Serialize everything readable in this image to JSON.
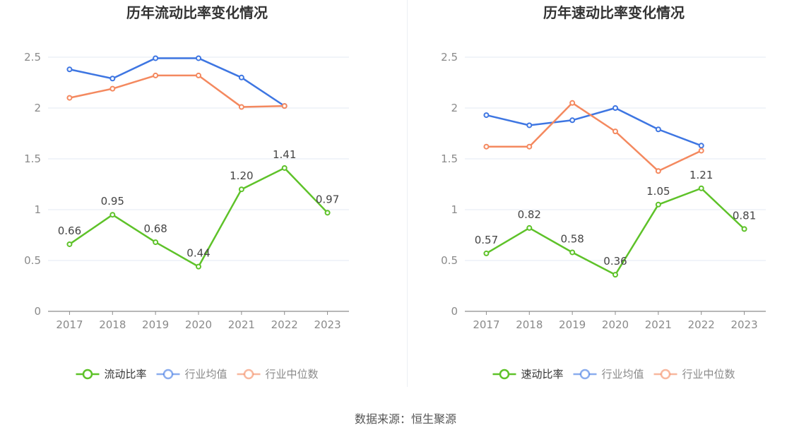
{
  "chart_data": [
    {
      "type": "line",
      "title": "历年流动比率变化情况",
      "categories": [
        "2017",
        "2018",
        "2019",
        "2020",
        "2021",
        "2022",
        "2023"
      ],
      "ylim": [
        0,
        2.5
      ],
      "yticks": [
        "0",
        "0.5",
        "1",
        "1.5",
        "2",
        "2.5"
      ],
      "grid": true,
      "legend_position": "bottom",
      "series": [
        {
          "name": "流动比率",
          "color": "#5ec229",
          "values": [
            0.66,
            0.95,
            0.68,
            0.44,
            1.2,
            1.41,
            0.97
          ],
          "labels": [
            "0.66",
            "0.95",
            "0.68",
            "0.44",
            "1.20",
            "1.41",
            "0.97"
          ]
        },
        {
          "name": "行业均值",
          "color": "#3e76e2",
          "values": [
            2.38,
            2.29,
            2.49,
            2.49,
            2.3,
            2.02,
            null
          ]
        },
        {
          "name": "行业中位数",
          "color": "#f4895f",
          "values": [
            2.1,
            2.19,
            2.32,
            2.32,
            2.01,
            2.02,
            null
          ]
        }
      ]
    },
    {
      "type": "line",
      "title": "历年速动比率变化情况",
      "categories": [
        "2017",
        "2018",
        "2019",
        "2020",
        "2021",
        "2022",
        "2023"
      ],
      "ylim": [
        0,
        2.5
      ],
      "yticks": [
        "0",
        "0.5",
        "1",
        "1.5",
        "2",
        "2.5"
      ],
      "grid": true,
      "legend_position": "bottom",
      "series": [
        {
          "name": "速动比率",
          "color": "#5ec229",
          "values": [
            0.57,
            0.82,
            0.58,
            0.36,
            1.05,
            1.21,
            0.81
          ],
          "labels": [
            "0.57",
            "0.82",
            "0.58",
            "0.36",
            "1.05",
            "1.21",
            "0.81"
          ]
        },
        {
          "name": "行业均值",
          "color": "#3e76e2",
          "values": [
            1.93,
            1.83,
            1.88,
            2.0,
            1.79,
            1.63,
            null
          ]
        },
        {
          "name": "行业中位数",
          "color": "#f4895f",
          "values": [
            1.62,
            1.62,
            2.05,
            1.77,
            1.38,
            1.58,
            null
          ]
        }
      ]
    }
  ],
  "source": "数据来源：恒生聚源"
}
